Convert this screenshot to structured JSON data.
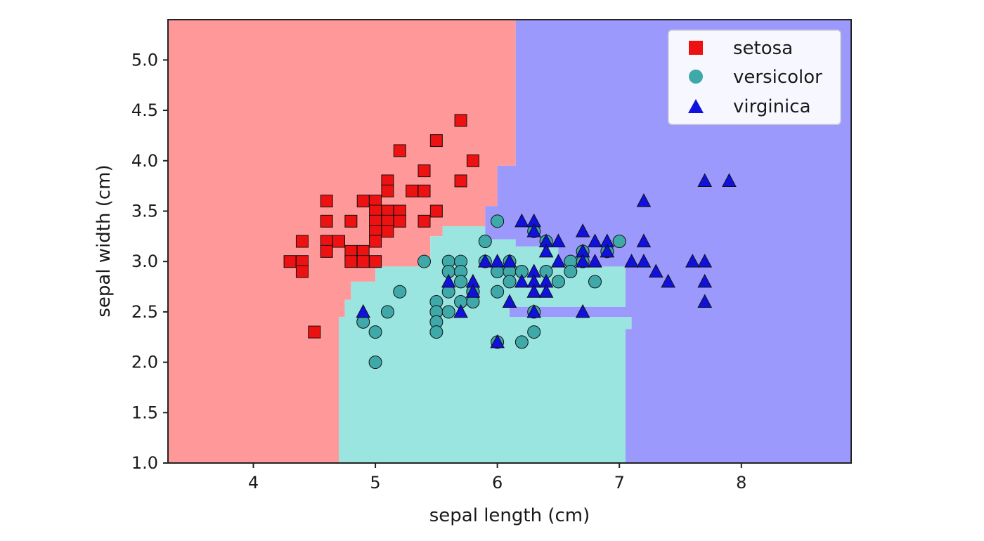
{
  "chart_data": {
    "type": "scatter",
    "title": "",
    "xlabel": "sepal length (cm)",
    "ylabel": "sepal width (cm)",
    "xlim": [
      3.3,
      8.9
    ],
    "ylim": [
      1.0,
      5.4
    ],
    "xticks": [
      "4",
      "5",
      "6",
      "7",
      "8"
    ],
    "yticks": [
      "1.0",
      "1.5",
      "2.0",
      "2.5",
      "3.0",
      "3.5",
      "4.0",
      "4.5",
      "5.0"
    ],
    "grid": false,
    "legend_position": "top-right",
    "colors": {
      "setosa": "#ee1111",
      "versicolor": "#3fa8a8",
      "virginica": "#1111dd",
      "region_setosa": "#ff9999",
      "region_versicolor": "#9be5e1",
      "region_virginica": "#9b99fc"
    },
    "decision_regions": [
      {
        "class": "setosa",
        "polygon": [
          [
            3.3,
            1.0
          ],
          [
            4.7,
            1.0
          ],
          [
            4.7,
            2.45
          ],
          [
            4.75,
            2.45
          ],
          [
            4.75,
            2.62
          ],
          [
            4.8,
            2.62
          ],
          [
            4.8,
            2.8
          ],
          [
            5.0,
            2.8
          ],
          [
            5.0,
            2.95
          ],
          [
            5.45,
            2.95
          ],
          [
            5.45,
            3.25
          ],
          [
            5.55,
            3.25
          ],
          [
            5.55,
            3.35
          ],
          [
            5.9,
            3.35
          ],
          [
            5.9,
            3.55
          ],
          [
            6.0,
            3.55
          ],
          [
            6.0,
            3.95
          ],
          [
            6.15,
            3.95
          ],
          [
            6.15,
            5.4
          ],
          [
            3.3,
            5.4
          ]
        ]
      },
      {
        "class": "versicolor",
        "polygon": [
          [
            4.7,
            1.0
          ],
          [
            7.05,
            1.0
          ],
          [
            7.05,
            2.33
          ],
          [
            7.1,
            2.33
          ],
          [
            7.1,
            2.45
          ],
          [
            6.1,
            2.45
          ],
          [
            6.1,
            2.55
          ],
          [
            7.05,
            2.55
          ],
          [
            7.05,
            2.95
          ],
          [
            6.5,
            2.95
          ],
          [
            6.5,
            3.15
          ],
          [
            6.15,
            3.15
          ],
          [
            6.15,
            3.22
          ],
          [
            5.9,
            3.22
          ],
          [
            5.9,
            3.35
          ],
          [
            5.55,
            3.35
          ],
          [
            5.55,
            3.25
          ],
          [
            5.45,
            3.25
          ],
          [
            5.45,
            2.95
          ],
          [
            5.0,
            2.95
          ],
          [
            5.0,
            2.8
          ],
          [
            4.8,
            2.8
          ],
          [
            4.8,
            2.62
          ],
          [
            4.75,
            2.62
          ],
          [
            4.75,
            2.45
          ],
          [
            4.7,
            2.45
          ]
        ]
      },
      {
        "class": "virginica",
        "polygon": [
          [
            7.05,
            1.0
          ],
          [
            8.9,
            1.0
          ],
          [
            8.9,
            5.4
          ],
          [
            6.15,
            5.4
          ],
          [
            6.15,
            3.95
          ],
          [
            6.0,
            3.95
          ],
          [
            6.0,
            3.55
          ],
          [
            5.9,
            3.55
          ],
          [
            5.9,
            3.22
          ],
          [
            6.15,
            3.22
          ],
          [
            6.15,
            3.15
          ],
          [
            6.5,
            3.15
          ],
          [
            6.5,
            2.95
          ],
          [
            7.05,
            2.95
          ],
          [
            7.05,
            2.55
          ],
          [
            6.1,
            2.55
          ],
          [
            6.1,
            2.45
          ],
          [
            7.1,
            2.45
          ],
          [
            7.1,
            2.33
          ],
          [
            7.05,
            2.33
          ]
        ]
      }
    ],
    "series": [
      {
        "name": "setosa",
        "marker": "square",
        "points": [
          [
            5.7,
            4.4
          ],
          [
            5.5,
            4.2
          ],
          [
            5.2,
            4.1
          ],
          [
            5.8,
            4.0
          ],
          [
            5.4,
            3.9
          ],
          [
            5.7,
            3.8
          ],
          [
            5.1,
            3.8
          ],
          [
            5.3,
            3.7
          ],
          [
            5.4,
            3.7
          ],
          [
            5.1,
            3.7
          ],
          [
            4.6,
            3.6
          ],
          [
            4.9,
            3.6
          ],
          [
            5.0,
            3.6
          ],
          [
            5.0,
            3.5
          ],
          [
            5.1,
            3.5
          ],
          [
            5.2,
            3.5
          ],
          [
            5.5,
            3.5
          ],
          [
            4.4,
            3.2
          ],
          [
            4.6,
            3.4
          ],
          [
            4.6,
            3.2
          ],
          [
            4.8,
            3.4
          ],
          [
            5.0,
            3.4
          ],
          [
            5.1,
            3.4
          ],
          [
            5.2,
            3.4
          ],
          [
            5.4,
            3.4
          ],
          [
            5.0,
            3.3
          ],
          [
            5.1,
            3.3
          ],
          [
            4.7,
            3.2
          ],
          [
            5.0,
            3.2
          ],
          [
            4.6,
            3.1
          ],
          [
            4.8,
            3.1
          ],
          [
            4.9,
            3.1
          ],
          [
            4.3,
            3.0
          ],
          [
            4.4,
            3.0
          ],
          [
            4.8,
            3.0
          ],
          [
            4.9,
            3.0
          ],
          [
            5.0,
            3.0
          ],
          [
            4.4,
            2.9
          ],
          [
            4.5,
            2.3
          ]
        ]
      },
      {
        "name": "versicolor",
        "marker": "circle",
        "points": [
          [
            6.0,
            3.4
          ],
          [
            5.9,
            3.2
          ],
          [
            6.4,
            3.2
          ],
          [
            7.0,
            3.2
          ],
          [
            6.3,
            3.3
          ],
          [
            6.7,
            3.1
          ],
          [
            6.9,
            3.1
          ],
          [
            5.4,
            3.0
          ],
          [
            5.6,
            3.0
          ],
          [
            5.7,
            3.0
          ],
          [
            5.9,
            3.0
          ],
          [
            6.1,
            3.0
          ],
          [
            6.6,
            3.0
          ],
          [
            6.7,
            3.0
          ],
          [
            5.6,
            2.9
          ],
          [
            5.7,
            2.9
          ],
          [
            6.0,
            2.9
          ],
          [
            6.1,
            2.9
          ],
          [
            6.2,
            2.9
          ],
          [
            6.4,
            2.9
          ],
          [
            6.6,
            2.9
          ],
          [
            5.7,
            2.8
          ],
          [
            5.8,
            2.7
          ],
          [
            6.1,
            2.8
          ],
          [
            6.5,
            2.8
          ],
          [
            6.8,
            2.8
          ],
          [
            5.6,
            2.7
          ],
          [
            5.8,
            2.7
          ],
          [
            6.0,
            2.7
          ],
          [
            5.2,
            2.7
          ],
          [
            5.7,
            2.6
          ],
          [
            5.5,
            2.6
          ],
          [
            5.8,
            2.6
          ],
          [
            5.1,
            2.5
          ],
          [
            5.5,
            2.5
          ],
          [
            5.6,
            2.5
          ],
          [
            6.3,
            2.5
          ],
          [
            5.5,
            2.4
          ],
          [
            4.9,
            2.4
          ],
          [
            5.0,
            2.3
          ],
          [
            5.5,
            2.3
          ],
          [
            6.3,
            2.3
          ],
          [
            6.0,
            2.2
          ],
          [
            6.2,
            2.2
          ],
          [
            5.0,
            2.0
          ]
        ]
      },
      {
        "name": "virginica",
        "marker": "triangle",
        "points": [
          [
            7.7,
            3.8
          ],
          [
            7.9,
            3.8
          ],
          [
            7.2,
            3.6
          ],
          [
            6.2,
            3.4
          ],
          [
            6.3,
            3.4
          ],
          [
            6.3,
            3.3
          ],
          [
            6.7,
            3.3
          ],
          [
            6.4,
            3.2
          ],
          [
            6.5,
            3.2
          ],
          [
            6.8,
            3.2
          ],
          [
            6.9,
            3.2
          ],
          [
            7.2,
            3.2
          ],
          [
            6.4,
            3.1
          ],
          [
            6.7,
            3.1
          ],
          [
            6.9,
            3.1
          ],
          [
            5.9,
            3.0
          ],
          [
            6.0,
            3.0
          ],
          [
            6.1,
            3.0
          ],
          [
            6.5,
            3.0
          ],
          [
            6.7,
            3.0
          ],
          [
            6.8,
            3.0
          ],
          [
            7.1,
            3.0
          ],
          [
            7.2,
            3.0
          ],
          [
            7.6,
            3.0
          ],
          [
            7.7,
            3.0
          ],
          [
            6.3,
            2.9
          ],
          [
            7.3,
            2.9
          ],
          [
            5.8,
            2.8
          ],
          [
            6.2,
            2.8
          ],
          [
            6.3,
            2.8
          ],
          [
            6.4,
            2.8
          ],
          [
            7.4,
            2.8
          ],
          [
            7.7,
            2.8
          ],
          [
            5.8,
            2.7
          ],
          [
            6.3,
            2.7
          ],
          [
            6.4,
            2.7
          ],
          [
            5.6,
            2.8
          ],
          [
            6.1,
            2.6
          ],
          [
            7.7,
            2.6
          ],
          [
            4.9,
            2.5
          ],
          [
            5.7,
            2.5
          ],
          [
            6.3,
            2.5
          ],
          [
            6.7,
            2.5
          ],
          [
            6.0,
            2.2
          ]
        ]
      }
    ]
  }
}
